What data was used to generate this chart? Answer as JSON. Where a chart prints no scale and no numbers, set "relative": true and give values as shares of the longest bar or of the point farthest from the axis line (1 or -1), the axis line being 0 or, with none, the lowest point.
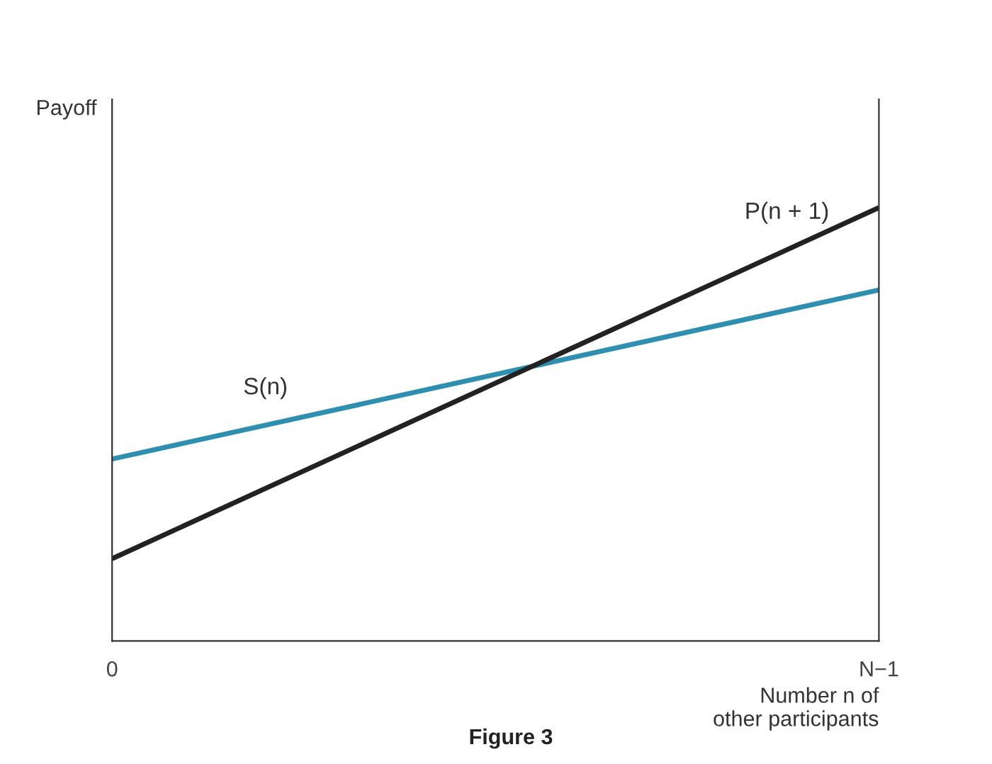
{
  "chart_data": {
    "type": "line",
    "relative": true,
    "categories": [
      "0",
      "N−1"
    ],
    "xlabel": "Number n of\nother participants",
    "ylabel": "Payoff",
    "series": [
      {
        "name": "S(n)",
        "color": "#2e8fb0",
        "values": [
          0.42,
          0.81
        ]
      },
      {
        "name": "P(n + 1)",
        "color": "#222222",
        "values": [
          0.19,
          1.0
        ]
      }
    ],
    "annotations": [
      "Figure 3"
    ],
    "marker": "none",
    "line_style": "solid"
  }
}
